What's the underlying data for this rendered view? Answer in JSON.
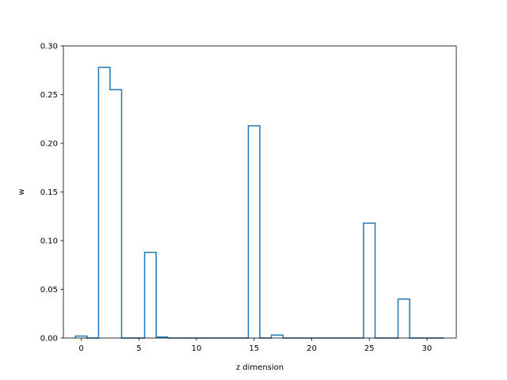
{
  "chart_data": {
    "type": "bar",
    "style": "step-outline",
    "line_color": "#1f77b4",
    "title": "",
    "xlabel": "z dimension",
    "ylabel": "w",
    "xlim": [
      -1.55,
      32.55
    ],
    "ylim": [
      0.0,
      0.3
    ],
    "grid": false,
    "x": [
      0,
      1,
      2,
      3,
      4,
      5,
      6,
      7,
      8,
      9,
      10,
      11,
      12,
      13,
      14,
      15,
      16,
      17,
      18,
      19,
      20,
      21,
      22,
      23,
      24,
      25,
      26,
      27,
      28,
      29,
      30,
      31
    ],
    "values": [
      0.002,
      0.0,
      0.278,
      0.255,
      0.0,
      0.0,
      0.088,
      0.001,
      0.0,
      0.0,
      0.0,
      0.0,
      0.0,
      0.0,
      0.0,
      0.218,
      0.0,
      0.003,
      0.0,
      0.0,
      0.0,
      0.0,
      0.0,
      0.0,
      0.0,
      0.118,
      0.0,
      0.0,
      0.04,
      0.0,
      0.0,
      0.0
    ],
    "xticks": [
      0,
      5,
      10,
      15,
      20,
      25,
      30
    ],
    "xtick_labels": [
      "0",
      "5",
      "10",
      "15",
      "20",
      "25",
      "30"
    ],
    "yticks": [
      0.0,
      0.05,
      0.1,
      0.15,
      0.2,
      0.25,
      0.3
    ],
    "ytick_labels": [
      "0.00",
      "0.05",
      "0.10",
      "0.15",
      "0.20",
      "0.25",
      "0.30"
    ]
  }
}
